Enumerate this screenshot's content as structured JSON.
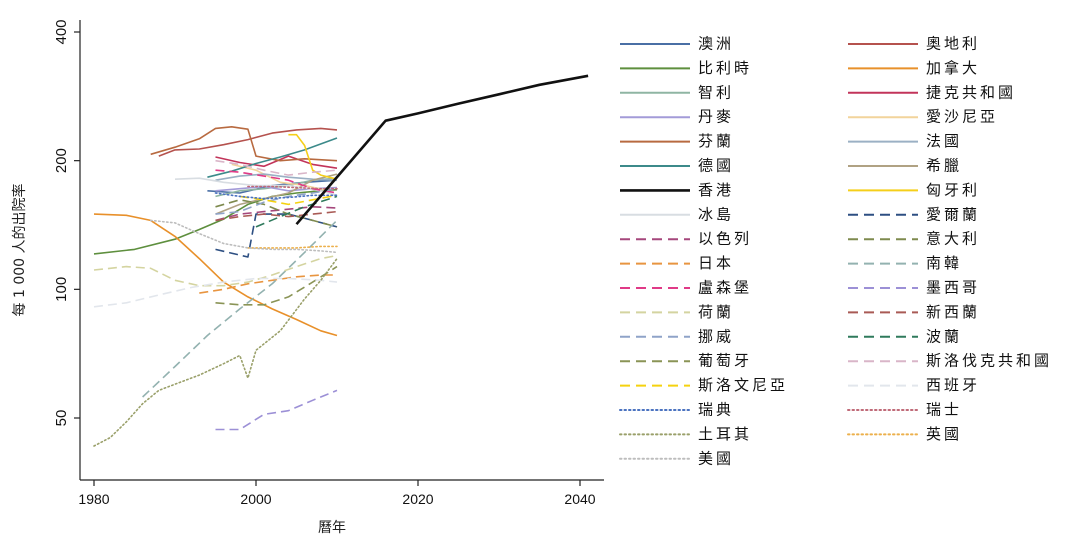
{
  "chart_data": {
    "type": "line",
    "title": "",
    "xlabel": "曆年",
    "ylabel": "每 1 000 人的出院率",
    "xlim": [
      1980,
      2041
    ],
    "ylim": [
      42,
      400
    ],
    "yscale": "log",
    "x_ticks": [
      "1980",
      "2000",
      "2020",
      "2040"
    ],
    "y_ticks": [
      "50",
      "100",
      "200",
      "400"
    ],
    "grid": false,
    "legend_position": "right",
    "series": [
      {
        "name": "澳洲",
        "color": "#4a6fa5",
        "dash": "solid",
        "points": [
          [
            1994,
            170
          ],
          [
            1998,
            168
          ],
          [
            2002,
            175
          ],
          [
            2006,
            178
          ],
          [
            2010,
            180
          ]
        ]
      },
      {
        "name": "奧地利",
        "color": "#b5524e",
        "dash": "solid",
        "points": [
          [
            1988,
            205
          ],
          [
            1990,
            212
          ],
          [
            1993,
            213
          ],
          [
            1996,
            218
          ],
          [
            1999,
            224
          ],
          [
            2002,
            232
          ],
          [
            2005,
            236
          ],
          [
            2008,
            238
          ],
          [
            2010,
            236
          ]
        ]
      },
      {
        "name": "比利時",
        "color": "#5e8f3e",
        "dash": "solid",
        "points": [
          [
            1980,
            121
          ],
          [
            1985,
            124
          ],
          [
            1990,
            131
          ],
          [
            1993,
            138
          ],
          [
            1996,
            146
          ],
          [
            1999,
            158
          ],
          [
            2002,
            165
          ],
          [
            2005,
            168
          ],
          [
            2008,
            170
          ],
          [
            2010,
            171
          ]
        ]
      },
      {
        "name": "加拿大",
        "color": "#e8902a",
        "dash": "solid",
        "points": [
          [
            1980,
            150
          ],
          [
            1984,
            149
          ],
          [
            1987,
            145
          ],
          [
            1990,
            133
          ],
          [
            1993,
            118
          ],
          [
            1996,
            104
          ],
          [
            1999,
            96
          ],
          [
            2002,
            90
          ],
          [
            2005,
            85
          ],
          [
            2008,
            80
          ],
          [
            2010,
            78
          ]
        ]
      },
      {
        "name": "智利",
        "color": "#8fb5a3",
        "dash": "solid",
        "points": [
          [
            1995,
            165
          ],
          [
            1998,
            170
          ],
          [
            2001,
            172
          ],
          [
            2004,
            175
          ],
          [
            2007,
            180
          ],
          [
            2010,
            182
          ]
        ]
      },
      {
        "name": "捷克共和國",
        "color": "#c2345a",
        "dash": "solid",
        "points": [
          [
            1995,
            204
          ],
          [
            1998,
            198
          ],
          [
            2001,
            194
          ],
          [
            2004,
            205
          ],
          [
            2007,
            196
          ],
          [
            2010,
            192
          ]
        ]
      },
      {
        "name": "丹麥",
        "color": "#a39bd8",
        "dash": "solid",
        "points": [
          [
            1995,
            170
          ],
          [
            1998,
            172
          ],
          [
            2001,
            174
          ],
          [
            2004,
            170
          ],
          [
            2007,
            172
          ],
          [
            2010,
            173
          ]
        ]
      },
      {
        "name": "愛沙尼亞",
        "color": "#f2d49b",
        "dash": "solid",
        "points": [
          [
            1997,
            196
          ],
          [
            2000,
            190
          ],
          [
            2003,
            178
          ],
          [
            2006,
            175
          ],
          [
            2009,
            170
          ]
        ]
      },
      {
        "name": "芬蘭",
        "color": "#b86a40",
        "dash": "solid",
        "points": [
          [
            1987,
            207
          ],
          [
            1990,
            215
          ],
          [
            1993,
            225
          ],
          [
            1995,
            238
          ],
          [
            1997,
            240
          ],
          [
            1999,
            237
          ],
          [
            2000,
            205
          ],
          [
            2003,
            200
          ],
          [
            2006,
            202
          ],
          [
            2010,
            200
          ]
        ]
      },
      {
        "name": "法國",
        "color": "#9bb0c4",
        "dash": "solid",
        "points": [
          [
            1995,
            180
          ],
          [
            1998,
            184
          ],
          [
            2001,
            186
          ],
          [
            2004,
            183
          ],
          [
            2007,
            181
          ],
          [
            2010,
            180
          ]
        ]
      },
      {
        "name": "德國",
        "color": "#3c8a8a",
        "dash": "solid",
        "points": [
          [
            1994,
            183
          ],
          [
            1997,
            189
          ],
          [
            2000,
            197
          ],
          [
            2003,
            204
          ],
          [
            2006,
            212
          ],
          [
            2010,
            226
          ]
        ]
      },
      {
        "name": "希臘",
        "color": "#b0a283",
        "dash": "solid",
        "points": [
          [
            1995,
            150
          ],
          [
            1998,
            158
          ],
          [
            2001,
            163
          ],
          [
            2004,
            168
          ],
          [
            2007,
            180
          ],
          [
            2010,
            186
          ]
        ]
      },
      {
        "name": "香港",
        "color": "#111111",
        "dash": "solid",
        "width": 2.6,
        "points": [
          [
            2005,
            142
          ],
          [
            2009,
            174
          ],
          [
            2016,
            248
          ],
          [
            2020,
            258
          ],
          [
            2025,
            272
          ],
          [
            2030,
            286
          ],
          [
            2035,
            301
          ],
          [
            2041,
            316
          ]
        ]
      },
      {
        "name": "匈牙利",
        "color": "#f5cf1a",
        "dash": "solid",
        "points": [
          [
            2004,
            230
          ],
          [
            2005,
            230
          ],
          [
            2006,
            217
          ],
          [
            2007,
            190
          ],
          [
            2008,
            185
          ],
          [
            2010,
            181
          ]
        ]
      },
      {
        "name": "冰島",
        "color": "#d8dde2",
        "dash": "solid",
        "points": [
          [
            1990,
            181
          ],
          [
            1993,
            182
          ],
          [
            1996,
            178
          ],
          [
            2000,
            175
          ],
          [
            2004,
            175
          ],
          [
            2008,
            170
          ],
          [
            2010,
            166
          ]
        ]
      },
      {
        "name": "愛爾蘭",
        "color": "#2d4f82",
        "dash": "dashed",
        "points": [
          [
            1995,
            124
          ],
          [
            1999,
            119
          ],
          [
            2000,
            150
          ],
          [
            2004,
            150
          ],
          [
            2007,
            145
          ],
          [
            2010,
            140
          ]
        ]
      },
      {
        "name": "以色列",
        "color": "#a5477c",
        "dash": "dashed",
        "points": [
          [
            1995,
            145
          ],
          [
            1998,
            150
          ],
          [
            2001,
            152
          ],
          [
            2004,
            154
          ],
          [
            2007,
            156
          ],
          [
            2010,
            155
          ]
        ]
      },
      {
        "name": "意大利",
        "color": "#7e8a4e",
        "dash": "dashed",
        "points": [
          [
            1995,
            156
          ],
          [
            1998,
            162
          ],
          [
            2001,
            158
          ],
          [
            2004,
            150
          ],
          [
            2007,
            145
          ],
          [
            2010,
            140
          ]
        ]
      },
      {
        "name": "日本",
        "color": "#e89540",
        "dash": "dashed",
        "points": [
          [
            1993,
            98
          ],
          [
            1996,
            100
          ],
          [
            1999,
            103
          ],
          [
            2002,
            105
          ],
          [
            2005,
            107
          ],
          [
            2008,
            108
          ],
          [
            2010,
            108
          ]
        ]
      },
      {
        "name": "南韓",
        "color": "#93b2b0",
        "dash": "dashed",
        "points": [
          [
            1986,
            56
          ],
          [
            1990,
            66
          ],
          [
            1994,
            78
          ],
          [
            1998,
            90
          ],
          [
            2002,
            103
          ],
          [
            2006,
            122
          ],
          [
            2010,
            145
          ]
        ]
      },
      {
        "name": "盧森堡",
        "color": "#e03a87",
        "dash": "dashed",
        "points": [
          [
            1995,
            190
          ],
          [
            1998,
            188
          ],
          [
            2001,
            184
          ],
          [
            2004,
            180
          ],
          [
            2007,
            172
          ],
          [
            2010,
            168
          ]
        ]
      },
      {
        "name": "墨西哥",
        "color": "#9c90d6",
        "dash": "dashed",
        "points": [
          [
            1995,
            47
          ],
          [
            1998,
            47
          ],
          [
            2001,
            51
          ],
          [
            2004,
            52
          ],
          [
            2007,
            55
          ],
          [
            2010,
            58
          ]
        ]
      },
      {
        "name": "荷蘭",
        "color": "#d4d4a0",
        "dash": "dashed",
        "points": [
          [
            1980,
            111
          ],
          [
            1984,
            113
          ],
          [
            1987,
            112
          ],
          [
            1990,
            105
          ],
          [
            1993,
            102
          ],
          [
            1996,
            102
          ],
          [
            1999,
            104
          ],
          [
            2002,
            108
          ],
          [
            2005,
            113
          ],
          [
            2008,
            118
          ],
          [
            2010,
            120
          ]
        ]
      },
      {
        "name": "新西蘭",
        "color": "#a95a55",
        "dash": "dashed",
        "points": [
          [
            1995,
            145
          ],
          [
            1998,
            148
          ],
          [
            2001,
            150
          ],
          [
            2004,
            148
          ],
          [
            2007,
            150
          ],
          [
            2010,
            152
          ]
        ]
      },
      {
        "name": "挪威",
        "color": "#8fa3c8",
        "dash": "dashed",
        "points": [
          [
            1995,
            150
          ],
          [
            1998,
            152
          ],
          [
            2001,
            160
          ],
          [
            2004,
            165
          ],
          [
            2007,
            168
          ],
          [
            2010,
            172
          ]
        ]
      },
      {
        "name": "波蘭",
        "color": "#2f7a5c",
        "dash": "dashed",
        "points": [
          [
            2000,
            140
          ],
          [
            2003,
            148
          ],
          [
            2006,
            156
          ],
          [
            2010,
            165
          ]
        ]
      },
      {
        "name": "葡萄牙",
        "color": "#8a9456",
        "dash": "dashed",
        "points": [
          [
            1995,
            93
          ],
          [
            1998,
            92
          ],
          [
            2001,
            92
          ],
          [
            2004,
            96
          ],
          [
            2007,
            104
          ],
          [
            2010,
            113
          ]
        ]
      },
      {
        "name": "斯洛伐克共和國",
        "color": "#d9b5c8",
        "dash": "dashed",
        "points": [
          [
            1995,
            200
          ],
          [
            1998,
            196
          ],
          [
            2001,
            190
          ],
          [
            2004,
            185
          ],
          [
            2007,
            188
          ],
          [
            2010,
            190
          ]
        ]
      },
      {
        "name": "斯洛文尼亞",
        "color": "#f5d20f",
        "dash": "dashed",
        "points": [
          [
            1998,
            165
          ],
          [
            2001,
            162
          ],
          [
            2004,
            158
          ],
          [
            2007,
            162
          ],
          [
            2010,
            166
          ]
        ]
      },
      {
        "name": "西班牙",
        "color": "#e2e6ec",
        "dash": "dashed",
        "points": [
          [
            1980,
            91
          ],
          [
            1984,
            93
          ],
          [
            1988,
            97
          ],
          [
            1992,
            101
          ],
          [
            1996,
            104
          ],
          [
            2000,
            106
          ],
          [
            2004,
            106
          ],
          [
            2008,
            105
          ],
          [
            2010,
            104
          ]
        ]
      },
      {
        "name": "瑞典",
        "color": "#4a72c0",
        "dash": "dotted",
        "points": [
          [
            1995,
            168
          ],
          [
            1998,
            165
          ],
          [
            2001,
            163
          ],
          [
            2004,
            164
          ],
          [
            2007,
            166
          ],
          [
            2010,
            166
          ]
        ]
      },
      {
        "name": "瑞士",
        "color": "#c06a78",
        "dash": "dotted",
        "points": [
          [
            1999,
            174
          ],
          [
            2002,
            174
          ],
          [
            2005,
            173
          ],
          [
            2008,
            172
          ],
          [
            2010,
            172
          ]
        ]
      },
      {
        "name": "土耳其",
        "color": "#9aa06a",
        "dash": "dotted",
        "points": [
          [
            1980,
            43
          ],
          [
            1982,
            45
          ],
          [
            1984,
            49
          ],
          [
            1986,
            54
          ],
          [
            1988,
            58
          ],
          [
            1990,
            60
          ],
          [
            1993,
            63
          ],
          [
            1996,
            67
          ],
          [
            1998,
            70
          ],
          [
            1999,
            62
          ],
          [
            2000,
            72
          ],
          [
            2003,
            80
          ],
          [
            2006,
            95
          ],
          [
            2008,
            105
          ],
          [
            2010,
            118
          ]
        ]
      },
      {
        "name": "英國",
        "color": "#ecb04c",
        "dash": "dotted",
        "points": [
          [
            1999,
            125
          ],
          [
            2002,
            125
          ],
          [
            2005,
            125
          ],
          [
            2008,
            126
          ],
          [
            2010,
            126
          ]
        ]
      },
      {
        "name": "美國",
        "color": "#bdbdbd",
        "dash": "dotted",
        "points": [
          [
            1987,
            145
          ],
          [
            1990,
            143
          ],
          [
            1993,
            135
          ],
          [
            1996,
            128
          ],
          [
            1999,
            125
          ],
          [
            2002,
            124
          ],
          [
            2005,
            124
          ],
          [
            2008,
            123
          ],
          [
            2010,
            122
          ]
        ]
      }
    ]
  }
}
